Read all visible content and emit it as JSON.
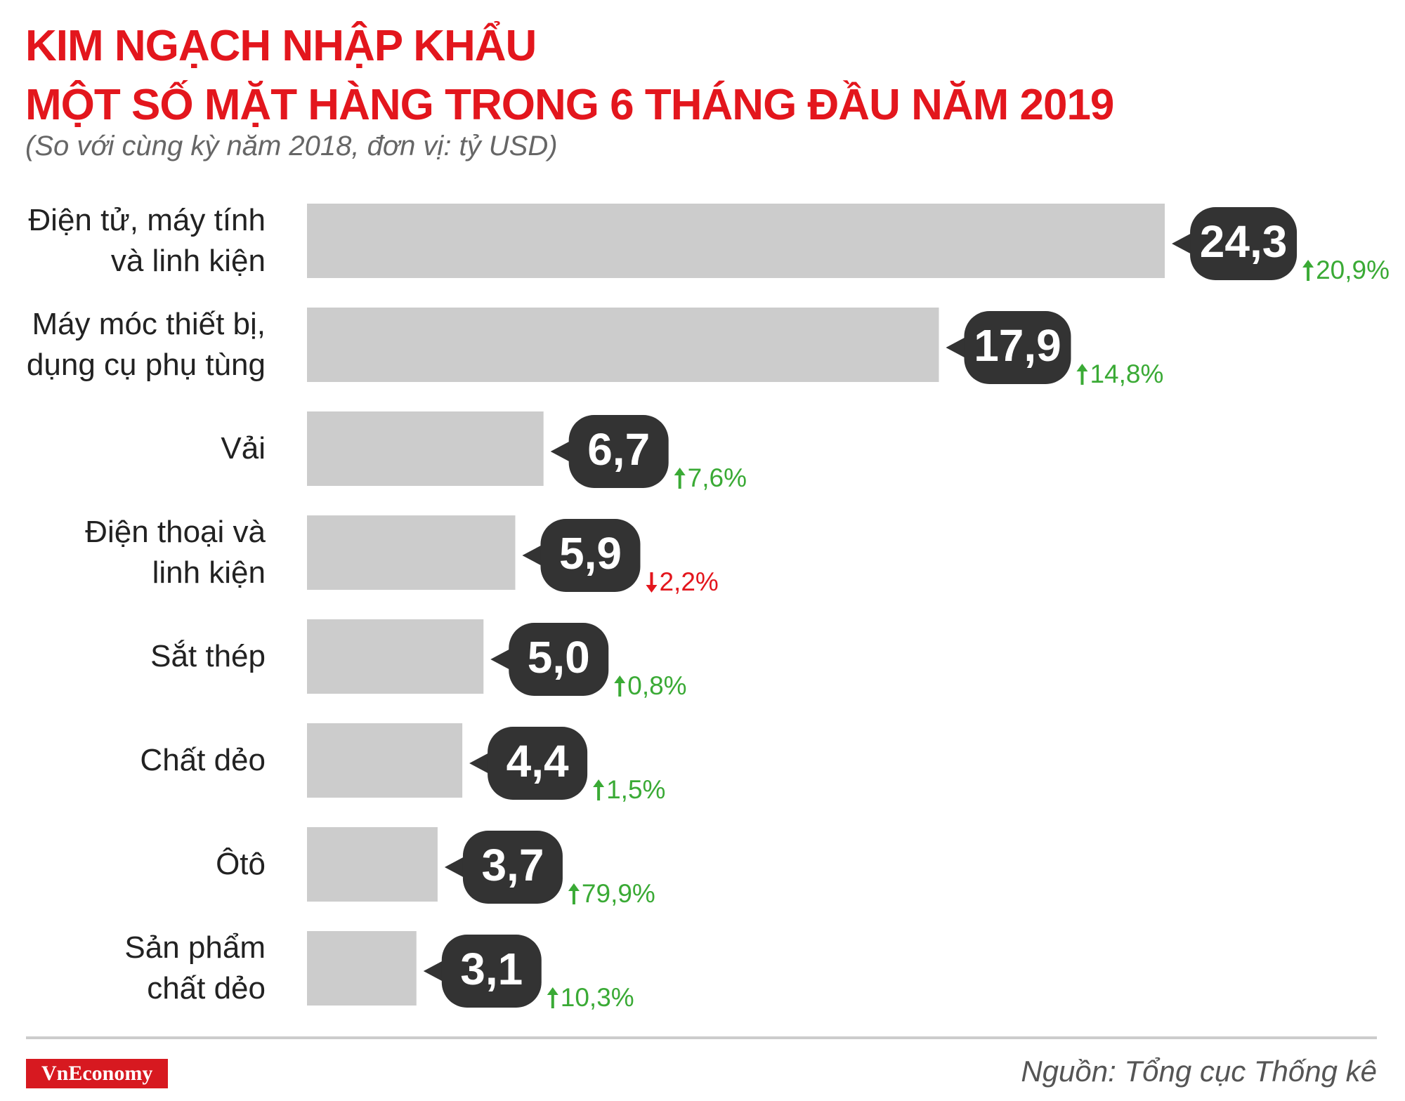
{
  "chart_data": {
    "type": "bar",
    "orientation": "horizontal",
    "title": "KIM NGẠCH NHẬP KHẨU\nMỘT SỐ MẶT HÀNG TRONG 6 THÁNG ĐẦU NĂM 2019",
    "subtitle": "(So với cùng kỳ năm 2018, đơn vị: tỷ USD)",
    "categories": [
      "Điện tử, máy tính\nvà linh kiện",
      "Máy móc thiết bị,\ndụng cụ phụ tùng",
      "Vải",
      "Điện thoại và\nlinh kiện",
      "Sắt thép",
      "Chất dẻo",
      "Ôtô",
      "Sản phẩm\nchất dẻo"
    ],
    "values": [
      24.3,
      17.9,
      6.7,
      5.9,
      5.0,
      4.4,
      3.7,
      3.1
    ],
    "value_labels": [
      "24,3",
      "17,9",
      "6,7",
      "5,9",
      "5,0",
      "4,4",
      "3,7",
      "3,1"
    ],
    "changes": [
      20.9,
      14.8,
      7.6,
      -2.2,
      0.8,
      1.5,
      79.9,
      10.3
    ],
    "change_labels": [
      "20,9%",
      "14,8%",
      "7,6%",
      "2,2%",
      "0,8%",
      "1,5%",
      "79,9%",
      "10,3%"
    ],
    "color": "#cccccc",
    "label_color": "#333333",
    "up_color": "#3aaa35",
    "down_color": "#e3161d",
    "logo": "VnEconomy",
    "source": "Nguồn: Tổng cục Thống kê"
  }
}
